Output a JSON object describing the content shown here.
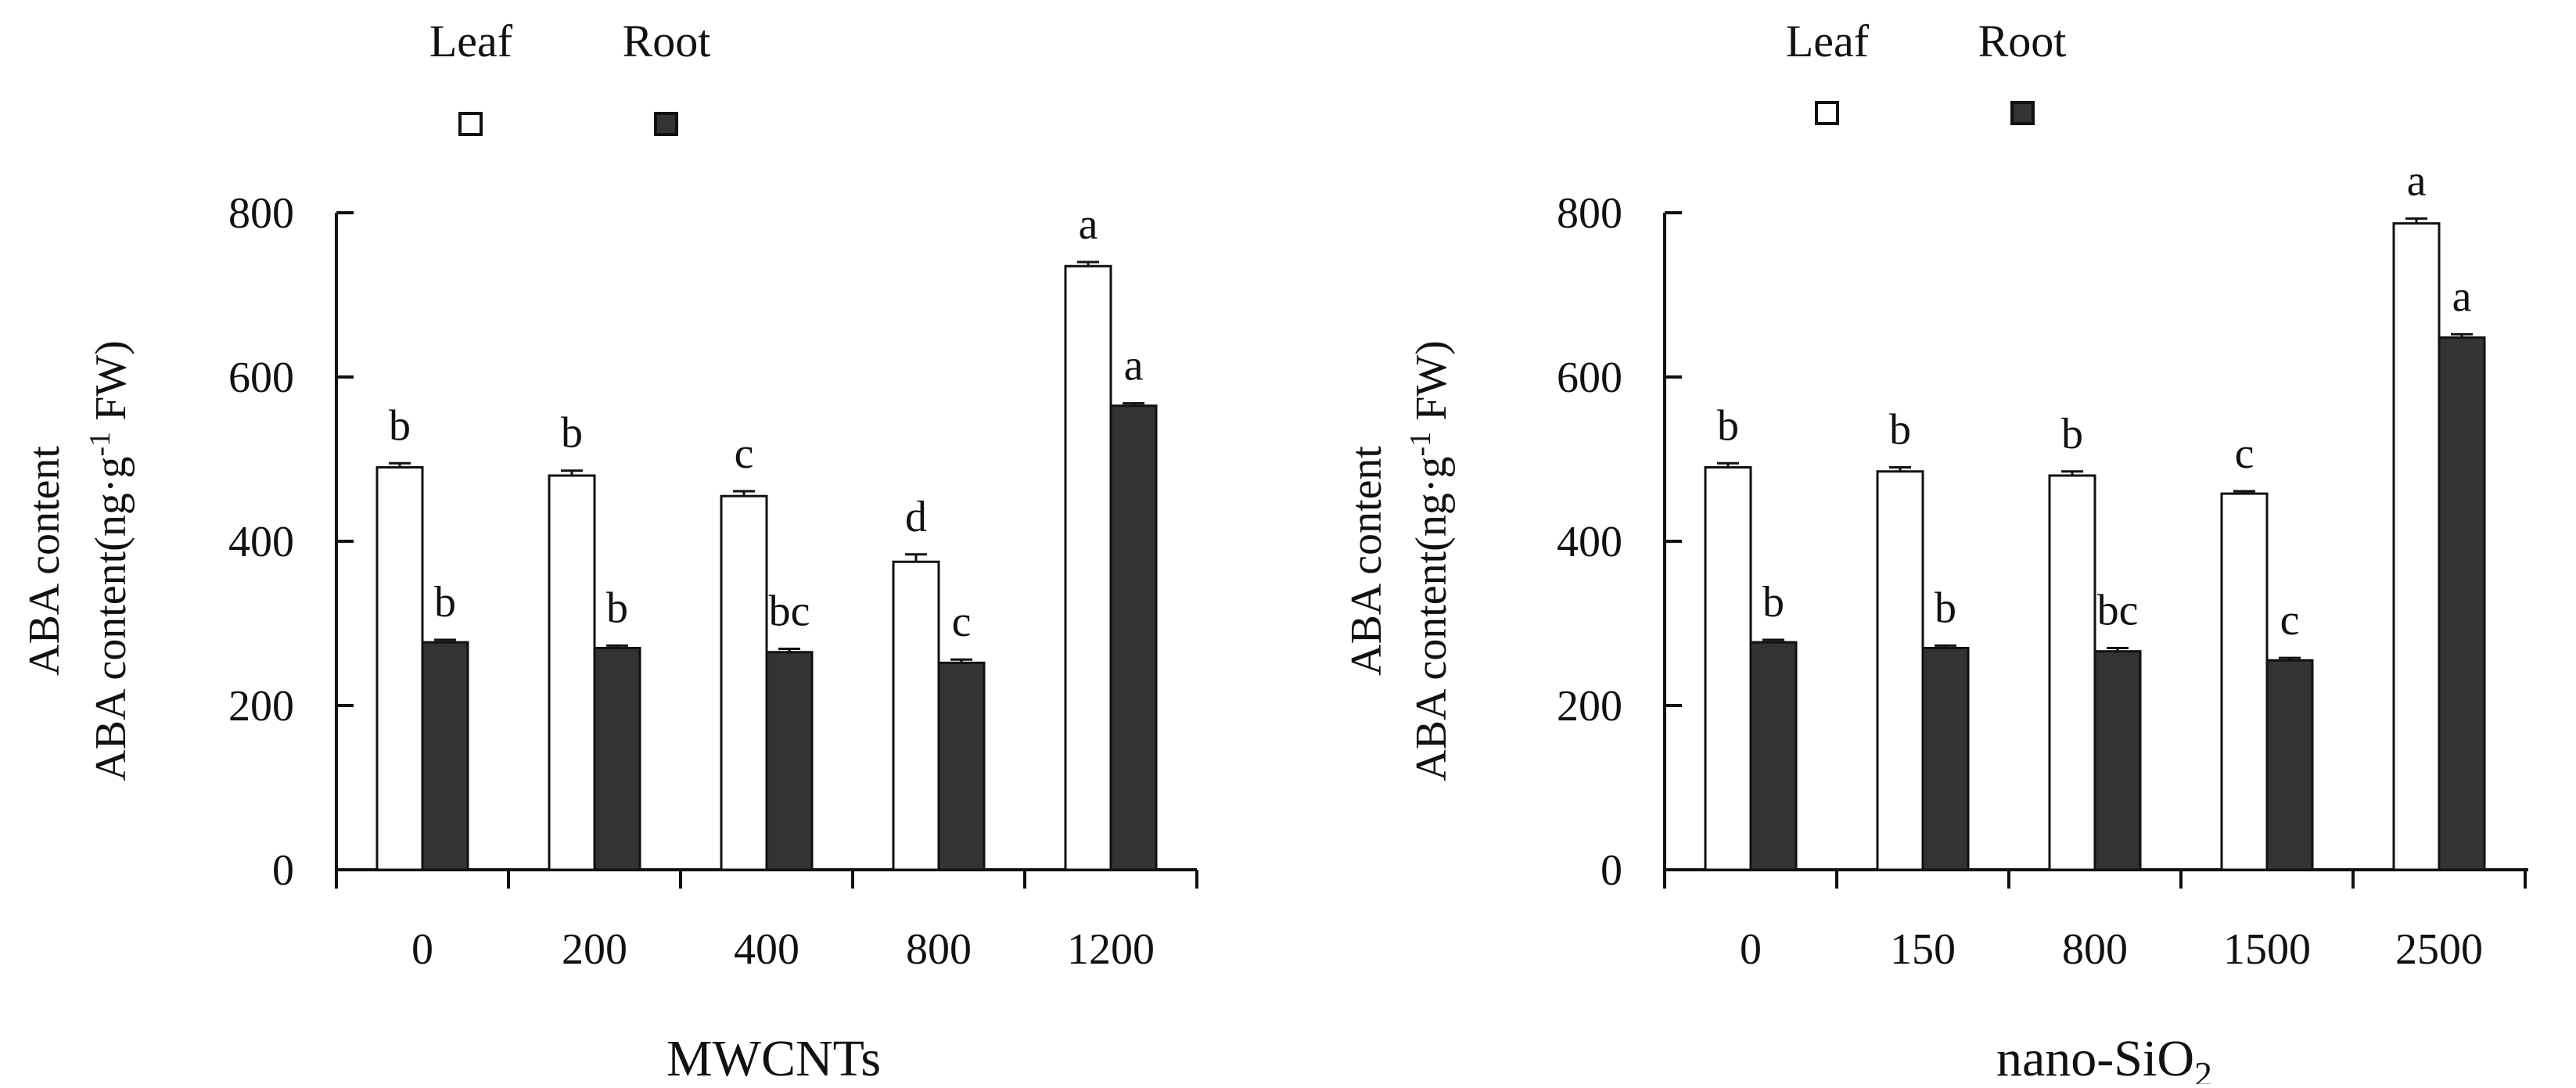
{
  "chart_data": [
    {
      "type": "bar",
      "categories": [
        "0",
        "200",
        "400",
        "800",
        "1200"
      ],
      "series": [
        {
          "name": "Leaf",
          "color": "#ffffff",
          "values": [
            490,
            480,
            455,
            375,
            735
          ],
          "errors": [
            5,
            6,
            6,
            9,
            5
          ],
          "letters": [
            "b",
            "b",
            "c",
            "d",
            "a"
          ]
        },
        {
          "name": "Root",
          "color": "#333333",
          "values": [
            277,
            270,
            265,
            252,
            565
          ],
          "errors": [
            3,
            3,
            4,
            4,
            3
          ],
          "letters": [
            "b",
            "b",
            "bc",
            "c",
            "a"
          ]
        }
      ],
      "xlabel": "MWCNTs",
      "ylabel_line1": "ABA content",
      "ylabel_line2_prefix": "ABA content(ng·g",
      "ylabel_sup": "-1",
      "ylabel_line2_suffix": " FW)",
      "ylim": [
        0,
        800
      ],
      "yticks": [
        0,
        200,
        400,
        600,
        800
      ]
    },
    {
      "type": "bar",
      "categories": [
        "0",
        "150",
        "800",
        "1500",
        "2500"
      ],
      "series": [
        {
          "name": "Leaf",
          "color": "#ffffff",
          "values": [
            490,
            485,
            480,
            458,
            787
          ],
          "errors": [
            5,
            5,
            5,
            3,
            6
          ],
          "letters": [
            "b",
            "b",
            "b",
            "c",
            "a"
          ]
        },
        {
          "name": "Root",
          "color": "#333333",
          "values": [
            277,
            270,
            266,
            255,
            648
          ],
          "errors": [
            3,
            3,
            4,
            3,
            4
          ],
          "letters": [
            "b",
            "b",
            "bc",
            "c",
            "a"
          ]
        }
      ],
      "xlabel_prefix": "nano-SiO",
      "xlabel_sub": "2",
      "ylabel_line1": "ABA content",
      "ylabel_line2_prefix": "ABA content(ng·g",
      "ylabel_sup": "-1",
      "ylabel_line2_suffix": " FW)",
      "ylim": [
        0,
        800
      ],
      "yticks": [
        0,
        200,
        400,
        600,
        800
      ]
    }
  ]
}
